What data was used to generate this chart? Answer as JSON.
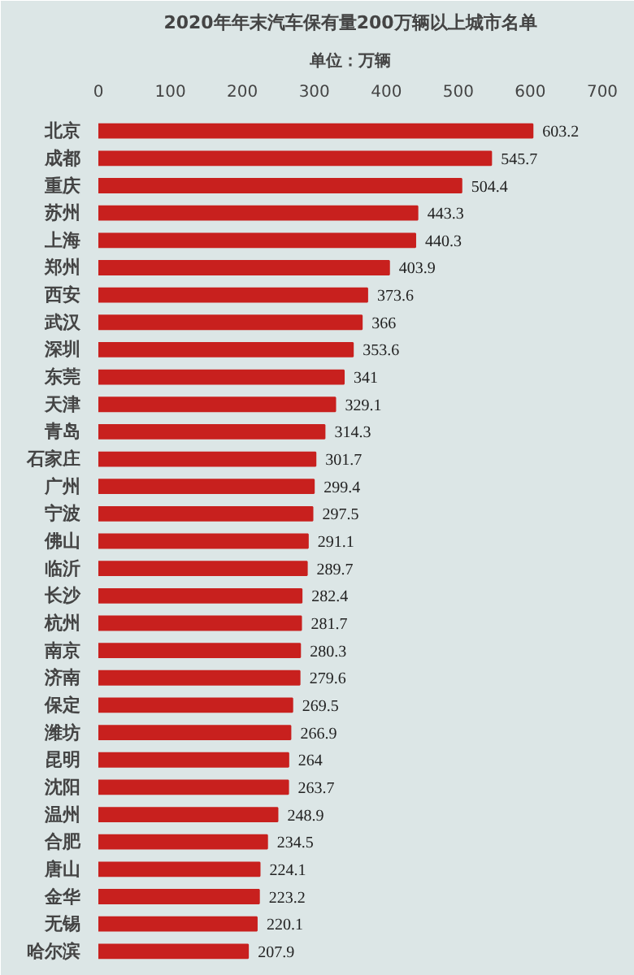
{
  "chart_data": {
    "type": "bar",
    "orientation": "horizontal",
    "title": "2020年年末汽车保有量200万辆以上城市名单",
    "subtitle": "单位：万辆",
    "categories": [
      "北京",
      "成都",
      "重庆",
      "苏州",
      "上海",
      "郑州",
      "西安",
      "武汉",
      "深圳",
      "东莞",
      "天津",
      "青岛",
      "石家庄",
      "广州",
      "宁波",
      "佛山",
      "临沂",
      "长沙",
      "杭州",
      "南京",
      "济南",
      "保定",
      "潍坊",
      "昆明",
      "沈阳",
      "温州",
      "合肥",
      "唐山",
      "金华",
      "无锡",
      "哈尔滨"
    ],
    "values": [
      603.2,
      545.7,
      504.4,
      443.3,
      440.3,
      403.9,
      373.6,
      366,
      353.6,
      341,
      329.1,
      314.3,
      301.7,
      299.4,
      297.5,
      291.1,
      289.7,
      282.4,
      281.7,
      280.3,
      279.6,
      269.5,
      266.9,
      264,
      263.7,
      248.9,
      234.5,
      224.1,
      223.2,
      220.1,
      207.9
    ],
    "color": "#c8201e",
    "xlim": [
      0,
      700
    ],
    "xticks": [
      0,
      100,
      200,
      300,
      400,
      500,
      600,
      700
    ],
    "data_labels": true,
    "grid": false
  }
}
